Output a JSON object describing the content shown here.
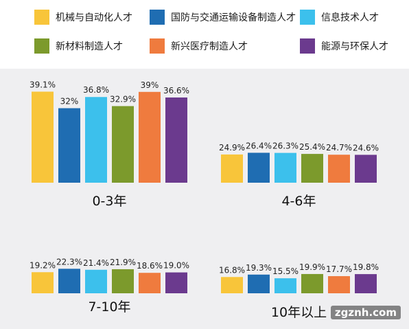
{
  "chart_data": {
    "type": "bar",
    "series": [
      {
        "name": "机械与自动化人才",
        "color": "#f8c53a"
      },
      {
        "name": "国防与交通运输设备制造人才",
        "color": "#1f6db2"
      },
      {
        "name": "信息技术人才",
        "color": "#3cc0ec"
      },
      {
        "name": "新材料制造人才",
        "color": "#7c9a2c"
      },
      {
        "name": "新兴医疗制造人才",
        "color": "#ef7b3e"
      },
      {
        "name": "能源与环保人才",
        "color": "#6b3a8e"
      }
    ],
    "groups": [
      {
        "label": "0-3年",
        "values": [
          39.1,
          32,
          36.8,
          32.9,
          39,
          36.6
        ],
        "value_labels": [
          "39.1%",
          "32%",
          "36.8%",
          "32.9%",
          "39%",
          "36.6%"
        ]
      },
      {
        "label": "4-6年",
        "values": [
          24.9,
          26.4,
          26.3,
          25.4,
          24.7,
          24.6
        ],
        "value_labels": [
          "24.9%",
          "26.4%",
          "26.3%",
          "25.4%",
          "24.7%",
          "24.6%"
        ]
      },
      {
        "label": "7-10年",
        "values": [
          19.2,
          22.3,
          21.4,
          21.9,
          18.6,
          19.0
        ],
        "value_labels": [
          "19.2%",
          "22.3%",
          "21.4%",
          "21.9%",
          "18.6%",
          "19.0%"
        ]
      },
      {
        "label": "10年以上",
        "values": [
          16.8,
          19.3,
          15.5,
          19.9,
          17.7,
          19.8
        ],
        "value_labels": [
          "16.8%",
          "19.3%",
          "15.5%",
          "19.9%",
          "17.7%",
          "19.8%"
        ]
      }
    ],
    "unit": "%",
    "legend_position": "top"
  },
  "watermark": "zgznh.com"
}
